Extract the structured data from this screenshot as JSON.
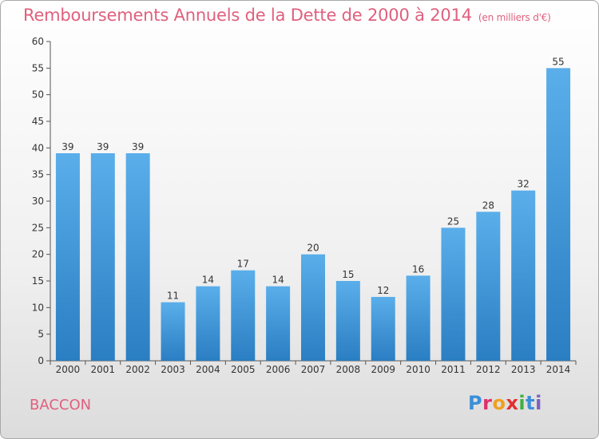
{
  "header": {
    "title": "Remboursements Annuels de la Dette de 2000 à 2014",
    "unit": "(en milliers d'€)"
  },
  "footer": {
    "commune": "BACCON",
    "logo": "Proxiti"
  },
  "colors": {
    "title": "#e0607e",
    "bar_top": "#5aaeea",
    "bar_bottom": "#2a7ec2",
    "logo_letters": [
      "#3a8fd8",
      "#e0306a",
      "#f0a020",
      "#e03030",
      "#40b040",
      "#3a8fd8",
      "#8060c0"
    ]
  },
  "chart_data": {
    "type": "bar",
    "title": "Remboursements Annuels de la Dette de 2000 à 2014",
    "subtitle": "(en milliers d'€)",
    "xlabel": "",
    "ylabel": "",
    "categories": [
      "2000",
      "2001",
      "2002",
      "2003",
      "2004",
      "2005",
      "2006",
      "2007",
      "2008",
      "2009",
      "2010",
      "2011",
      "2012",
      "2013",
      "2014"
    ],
    "values": [
      39,
      39,
      39,
      11,
      14,
      17,
      14,
      20,
      15,
      12,
      16,
      25,
      28,
      32,
      55
    ],
    "ylim": [
      0,
      60
    ],
    "yticks": [
      0,
      5,
      10,
      15,
      20,
      25,
      30,
      35,
      40,
      45,
      50,
      55,
      60
    ],
    "grid": false,
    "data_labels": true
  }
}
